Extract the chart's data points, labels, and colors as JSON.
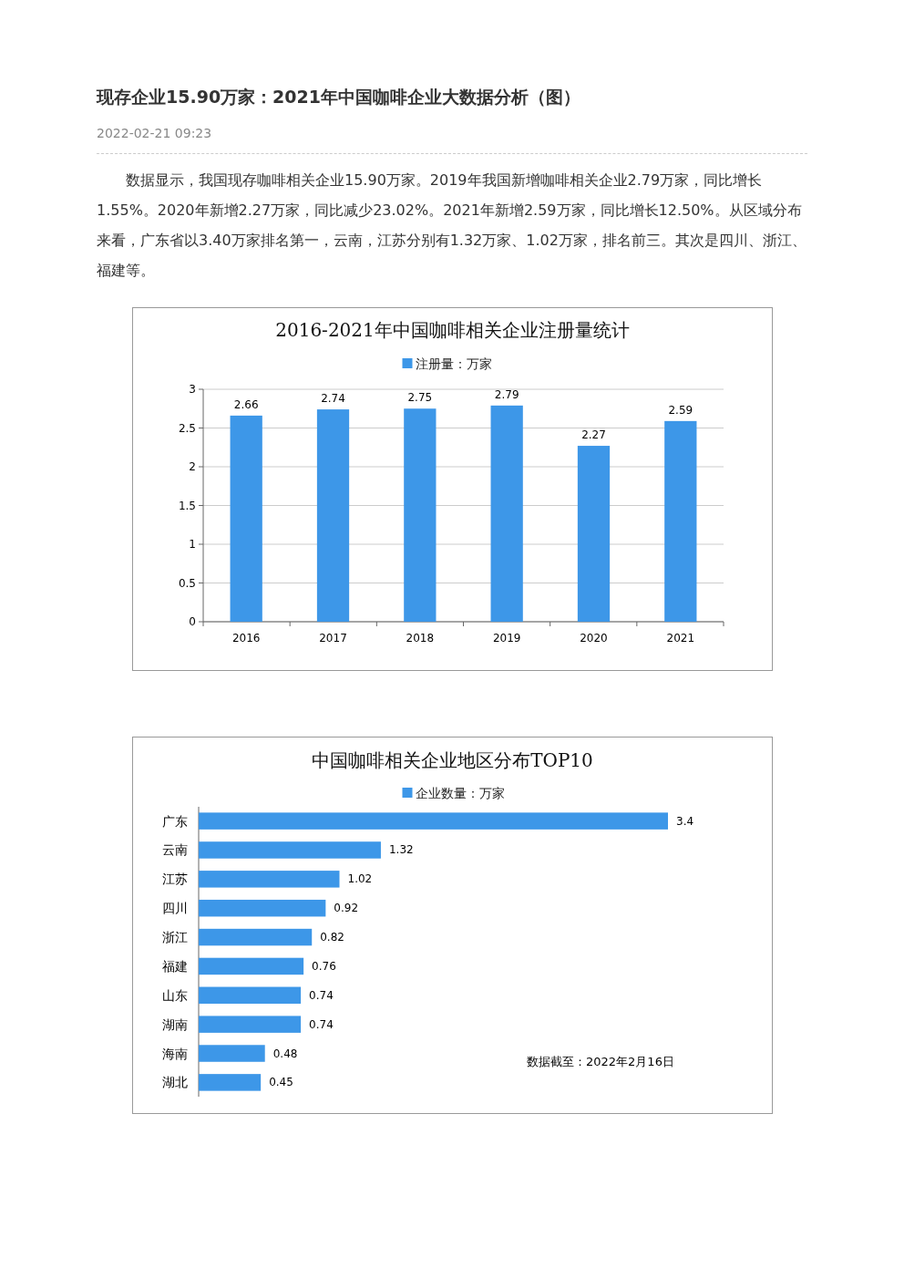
{
  "chart_data": [
    {
      "type": "other",
      "title": "现存企业15.90万家：2021年中国咖啡企业大数据分析（图）",
      "subtitle": "2022-02-21 09:23",
      "annotations": [
        "数据显示，我国现存咖啡相关企业15.90万家。2019年我国新增咖啡相关企业2.79万家，同比增长1.55%。2020年新增2.27万家，同比减少23.02%。2021年新增2.59万家，同比增长12.50%。从区域分布来看，广东省以3.40万家排名第一，云南，江苏分别有1.32万家、1.02万家，排名前三。其次是四川、浙江、福建等。"
      ]
    },
    {
      "type": "bar",
      "title": "2016-2021年中国咖啡相关企业注册量统计",
      "categories": [
        "2016",
        "2017",
        "2018",
        "2019",
        "2020",
        "2021"
      ],
      "series": [
        {
          "name": "注册量：万家",
          "color": "#3d97e8",
          "values": [
            2.66,
            2.74,
            2.75,
            2.79,
            2.27,
            2.59
          ]
        }
      ],
      "ylim": [
        0,
        3
      ],
      "yticks": [
        0,
        0.5,
        1,
        1.5,
        2,
        2.5,
        3
      ],
      "grid": "y",
      "legend": "top",
      "data_labels": true
    },
    {
      "type": "bar",
      "orientation": "horizontal",
      "title": "中国咖啡相关企业地区分布TOP10",
      "categories": [
        "广东",
        "云南",
        "江苏",
        "四川",
        "浙江",
        "福建",
        "山东",
        "湖南",
        "海南",
        "湖北"
      ],
      "series": [
        {
          "name": "企业数量：万家",
          "color": "#3d97e8",
          "values": [
            3.4,
            1.32,
            1.02,
            0.92,
            0.82,
            0.76,
            0.74,
            0.74,
            0.48,
            0.45
          ]
        }
      ],
      "legend": "top",
      "data_labels": true,
      "annotations": [
        "数据截至：2022年2月16日"
      ]
    }
  ]
}
